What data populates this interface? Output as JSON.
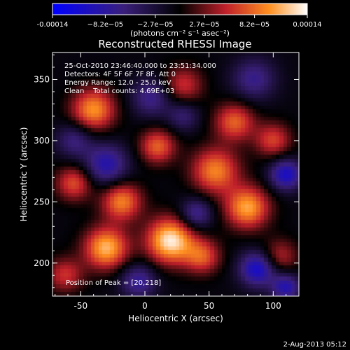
{
  "chart_data": {
    "type": "heatmap",
    "title": "Reconstructed RHESSI Image",
    "xlabel": "Heliocentric X (arcsec)",
    "ylabel": "Heliocentric Y (arcsec)",
    "xlim": [
      -72,
      120
    ],
    "ylim": [
      173,
      372
    ],
    "x_ticks": [
      -50,
      0,
      50,
      100
    ],
    "y_ticks": [
      200,
      250,
      300,
      350
    ],
    "colorbar": {
      "range": [
        -0.00014,
        0.00014
      ],
      "tick_values": [
        -0.00014,
        -8.2e-05,
        -2.7e-05,
        2.7e-05,
        8.2e-05,
        0.00014
      ],
      "tick_labels": [
        "-0.00014",
        "−8.2e−05",
        "−2.7e−05",
        "2.7e−05",
        "8.2e−05",
        "0.00014"
      ],
      "unit_label": "(photons cm⁻² s⁻¹ asec⁻²)",
      "colormap": [
        "#0000ff",
        "#3a1f7a",
        "#000000",
        "#c0202a",
        "#ff9020",
        "#ffffff"
      ]
    },
    "annotations": [
      "25-Oct-2010 23:46:40.000 to 23:51:34.000",
      "Detectors: 4F 5F 6F 7F 8F, Att 0",
      "Energy Range: 12.0 - 25.0 keV",
      "Clean    Total counts: 4.69E+03"
    ],
    "peak_label": "Position of Peak = [20,218]",
    "peak": [
      20,
      218
    ],
    "blobs": [
      {
        "x": 20,
        "y": 218,
        "amp": 1.0,
        "s": 13
      },
      {
        "x": -30,
        "y": 212,
        "amp": 0.85,
        "s": 12
      },
      {
        "x": -18,
        "y": 250,
        "amp": 0.7,
        "s": 11
      },
      {
        "x": -40,
        "y": 325,
        "amp": 0.75,
        "s": 12
      },
      {
        "x": 10,
        "y": 295,
        "amp": 0.6,
        "s": 10
      },
      {
        "x": 55,
        "y": 275,
        "amp": 0.7,
        "s": 13
      },
      {
        "x": 80,
        "y": 245,
        "amp": 0.8,
        "s": 12
      },
      {
        "x": 70,
        "y": 315,
        "amp": 0.6,
        "s": 11
      },
      {
        "x": 30,
        "y": 345,
        "amp": 0.45,
        "s": 11
      },
      {
        "x": -55,
        "y": 265,
        "amp": 0.55,
        "s": 10
      },
      {
        "x": 100,
        "y": 300,
        "amp": 0.5,
        "s": 10
      },
      {
        "x": 45,
        "y": 205,
        "amp": 0.55,
        "s": 10
      },
      {
        "x": -62,
        "y": 190,
        "amp": 0.45,
        "s": 10
      },
      {
        "x": 105,
        "y": 205,
        "amp": 0.4,
        "s": 10
      },
      {
        "x": -30,
        "y": 280,
        "amp": -0.6,
        "s": 12
      },
      {
        "x": -55,
        "y": 300,
        "amp": -0.4,
        "s": 10
      },
      {
        "x": 110,
        "y": 272,
        "amp": -0.7,
        "s": 9
      },
      {
        "x": 88,
        "y": 195,
        "amp": -0.75,
        "s": 10
      },
      {
        "x": 110,
        "y": 180,
        "amp": -0.6,
        "s": 8
      },
      {
        "x": 40,
        "y": 240,
        "amp": -0.5,
        "s": 9
      },
      {
        "x": 5,
        "y": 335,
        "amp": -0.45,
        "s": 11
      },
      {
        "x": 85,
        "y": 350,
        "amp": -0.45,
        "s": 12
      },
      {
        "x": -5,
        "y": 185,
        "amp": -0.5,
        "s": 10
      },
      {
        "x": 30,
        "y": 320,
        "amp": -0.35,
        "s": 9
      }
    ]
  },
  "footer": {
    "date": "2-Aug-2013 05:12"
  }
}
